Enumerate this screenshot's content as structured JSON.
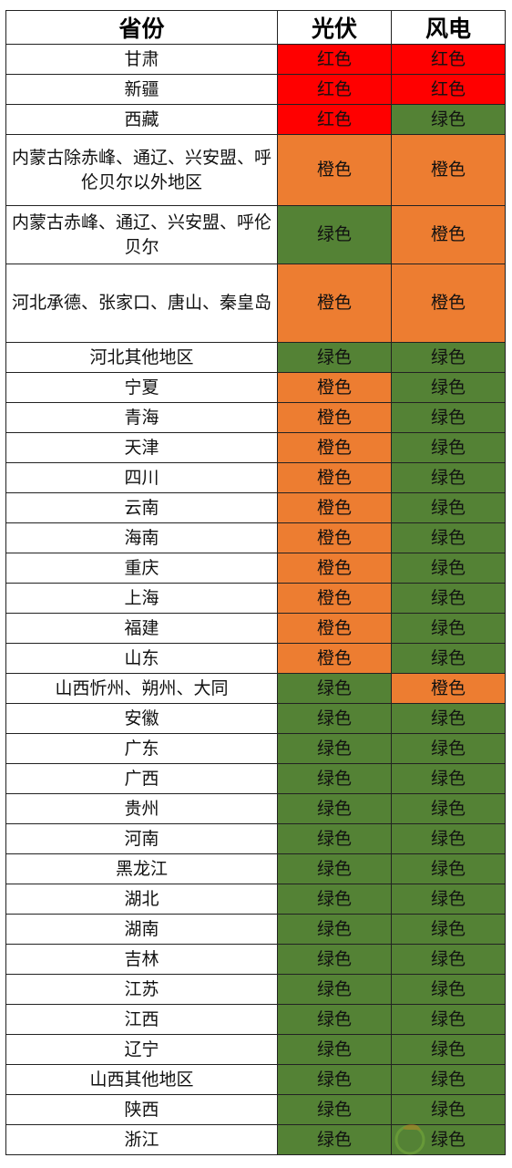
{
  "headers": [
    "省份",
    "光伏",
    "风电"
  ],
  "colors": {
    "红色": "#ff0000",
    "橙色": "#ed7d31",
    "绿色": "#548235"
  },
  "rows": [
    {
      "province": "甘肃",
      "pv": "红色",
      "wind": "红色"
    },
    {
      "province": "新疆",
      "pv": "红色",
      "wind": "红色"
    },
    {
      "province": "西藏",
      "pv": "红色",
      "wind": "绿色"
    },
    {
      "province": "内蒙古除赤峰、通辽、兴安盟、呼伦贝尔以外地区",
      "pv": "橙色",
      "wind": "橙色"
    },
    {
      "province": "内蒙古赤峰、通辽、兴安盟、呼伦贝尔",
      "pv": "绿色",
      "wind": "橙色"
    },
    {
      "province": "河北承德、张家口、唐山、秦皇岛",
      "pv": "橙色",
      "wind": "橙色"
    },
    {
      "province": "河北其他地区",
      "pv": "绿色",
      "wind": "绿色"
    },
    {
      "province": "宁夏",
      "pv": "橙色",
      "wind": "绿色"
    },
    {
      "province": "青海",
      "pv": "橙色",
      "wind": "绿色"
    },
    {
      "province": "天津",
      "pv": "橙色",
      "wind": "绿色"
    },
    {
      "province": "四川",
      "pv": "橙色",
      "wind": "绿色"
    },
    {
      "province": "云南",
      "pv": "橙色",
      "wind": "绿色"
    },
    {
      "province": "海南",
      "pv": "橙色",
      "wind": "绿色"
    },
    {
      "province": "重庆",
      "pv": "橙色",
      "wind": "绿色"
    },
    {
      "province": "上海",
      "pv": "橙色",
      "wind": "绿色"
    },
    {
      "province": "福建",
      "pv": "橙色",
      "wind": "绿色"
    },
    {
      "province": "山东",
      "pv": "橙色",
      "wind": "绿色"
    },
    {
      "province": "山西忻州、朔州、大同",
      "pv": "绿色",
      "wind": "橙色"
    },
    {
      "province": "安徽",
      "pv": "绿色",
      "wind": "绿色"
    },
    {
      "province": "广东",
      "pv": "绿色",
      "wind": "绿色"
    },
    {
      "province": "广西",
      "pv": "绿色",
      "wind": "绿色"
    },
    {
      "province": "贵州",
      "pv": "绿色",
      "wind": "绿色"
    },
    {
      "province": "河南",
      "pv": "绿色",
      "wind": "绿色"
    },
    {
      "province": "黑龙江",
      "pv": "绿色",
      "wind": "绿色"
    },
    {
      "province": "湖北",
      "pv": "绿色",
      "wind": "绿色"
    },
    {
      "province": "湖南",
      "pv": "绿色",
      "wind": "绿色"
    },
    {
      "province": "吉林",
      "pv": "绿色",
      "wind": "绿色"
    },
    {
      "province": "江苏",
      "pv": "绿色",
      "wind": "绿色"
    },
    {
      "province": "江西",
      "pv": "绿色",
      "wind": "绿色"
    },
    {
      "province": "辽宁",
      "pv": "绿色",
      "wind": "绿色"
    },
    {
      "province": "山西其他地区",
      "pv": "绿色",
      "wind": "绿色"
    },
    {
      "province": "陕西",
      "pv": "绿色",
      "wind": "绿色"
    },
    {
      "province": "浙江",
      "pv": "绿色",
      "wind": "绿色"
    }
  ]
}
